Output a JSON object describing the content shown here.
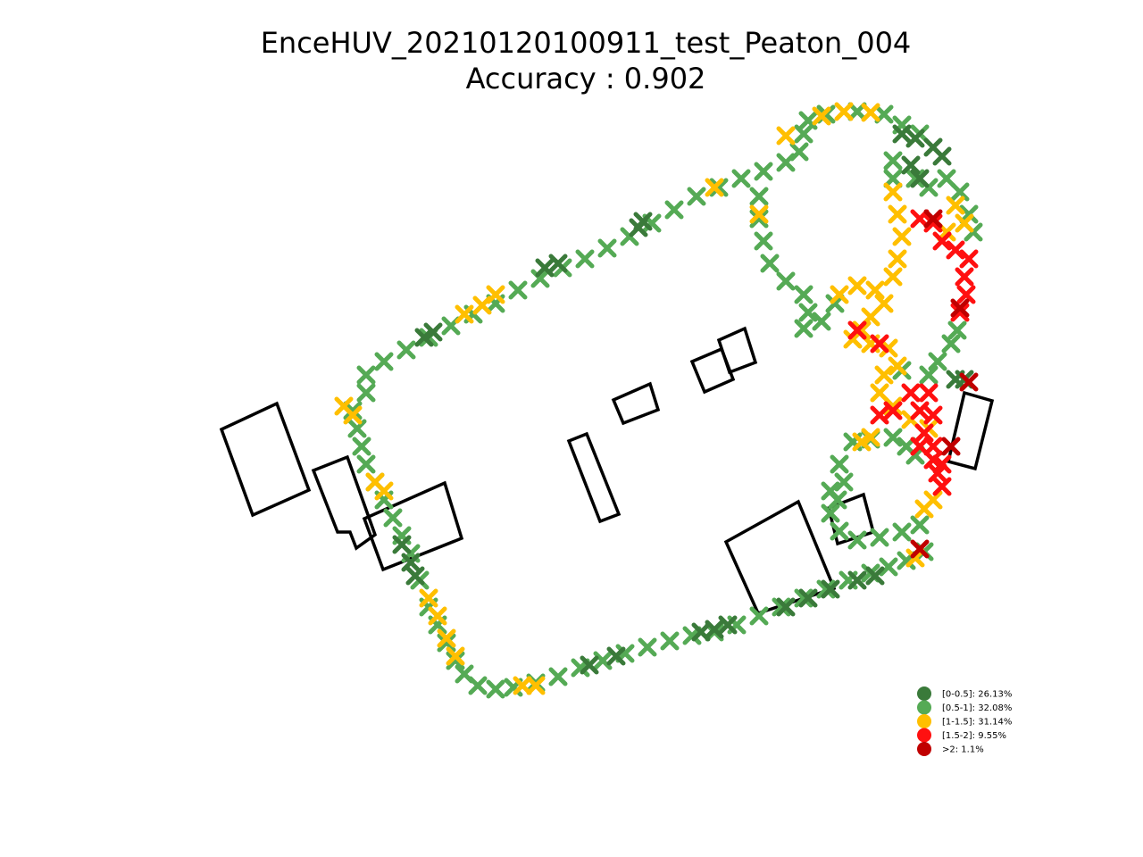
{
  "chart_data": {
    "type": "scatter",
    "title": "EnceHUV_20210120100911_test_Peaton_004",
    "subtitle": "Accuracy : 0.902",
    "grid": false,
    "axes_visible": false,
    "legend_placement": "lower-right",
    "colors": {
      "dark_green": "#3a7a3a",
      "green": "#55aa55",
      "yellow": "#ffbf00",
      "red": "#ff1010",
      "dark_red": "#c00000",
      "outline": "#000000"
    },
    "legend": [
      {
        "label": "[0-0.5]: 26.13%",
        "color": "#3a7a3a"
      },
      {
        "label": "[0.5-1]: 32.08%",
        "color": "#55aa55"
      },
      {
        "label": "[1-1.5]: 31.14%",
        "color": "#ffbf00"
      },
      {
        "label": "[1.5-2]: 9.55%",
        "color": "#ff1010"
      },
      {
        "label": ">2: 1.1%",
        "color": "#c00000"
      }
    ],
    "series": [
      {
        "category": "[0.5-1]",
        "color": "#55aa55",
        "points": [
          [
            410,
            440
          ],
          [
            395,
            460
          ],
          [
            400,
            480
          ],
          [
            405,
            500
          ],
          [
            410,
            520
          ],
          [
            420,
            540
          ],
          [
            430,
            560
          ],
          [
            440,
            580
          ],
          [
            450,
            600
          ],
          [
            460,
            620
          ],
          [
            470,
            650
          ],
          [
            480,
            680
          ],
          [
            490,
            700
          ],
          [
            500,
            720
          ],
          [
            510,
            740
          ],
          [
            520,
            755
          ],
          [
            535,
            768
          ],
          [
            555,
            772
          ],
          [
            575,
            770
          ],
          [
            600,
            765
          ],
          [
            625,
            758
          ],
          [
            650,
            748
          ],
          [
            675,
            740
          ],
          [
            700,
            732
          ],
          [
            725,
            725
          ],
          [
            750,
            718
          ],
          [
            775,
            712
          ],
          [
            800,
            708
          ],
          [
            825,
            700
          ],
          [
            850,
            690
          ],
          [
            875,
            680
          ],
          [
            900,
            670
          ],
          [
            925,
            660
          ],
          [
            950,
            650
          ],
          [
            975,
            642
          ],
          [
            995,
            635
          ],
          [
            1015,
            628
          ],
          [
            1035,
            618
          ],
          [
            410,
            420
          ],
          [
            430,
            405
          ],
          [
            455,
            392
          ],
          [
            480,
            378
          ],
          [
            505,
            365
          ],
          [
            530,
            352
          ],
          [
            555,
            340
          ],
          [
            580,
            325
          ],
          [
            605,
            312
          ],
          [
            630,
            300
          ],
          [
            655,
            290
          ],
          [
            680,
            278
          ],
          [
            705,
            265
          ],
          [
            730,
            250
          ],
          [
            755,
            235
          ],
          [
            780,
            220
          ],
          [
            805,
            210
          ],
          [
            830,
            200
          ],
          [
            855,
            192
          ],
          [
            880,
            182
          ],
          [
            895,
            170
          ],
          [
            900,
            150
          ],
          [
            905,
            135
          ],
          [
            925,
            128
          ],
          [
            960,
            125
          ],
          [
            990,
            128
          ],
          [
            1010,
            140
          ],
          [
            1030,
            150
          ],
          [
            1000,
            180
          ],
          [
            1000,
            200
          ],
          [
            1025,
            200
          ],
          [
            1040,
            210
          ],
          [
            1060,
            200
          ],
          [
            1075,
            215
          ],
          [
            1085,
            240
          ],
          [
            1090,
            260
          ],
          [
            850,
            220
          ],
          [
            850,
            245
          ],
          [
            855,
            270
          ],
          [
            862,
            295
          ],
          [
            880,
            315
          ],
          [
            900,
            330
          ],
          [
            905,
            350
          ],
          [
            900,
            368
          ],
          [
            920,
            360
          ],
          [
            935,
            340
          ],
          [
            1010,
            415
          ],
          [
            1040,
            420
          ],
          [
            1050,
            405
          ],
          [
            1065,
            385
          ],
          [
            1072,
            370
          ],
          [
            940,
            520
          ],
          [
            945,
            540
          ],
          [
            938,
            560
          ],
          [
            930,
            575
          ],
          [
            940,
            595
          ],
          [
            960,
            605
          ],
          [
            985,
            602
          ],
          [
            1010,
            596
          ],
          [
            1030,
            588
          ],
          [
            955,
            495
          ],
          [
            975,
            492
          ],
          [
            1000,
            490
          ],
          [
            1015,
            500
          ],
          [
            1025,
            510
          ],
          [
            930,
            550
          ]
        ]
      },
      {
        "category": "[0-0.5]",
        "color": "#3a7a3a",
        "points": [
          [
            450,
            610
          ],
          [
            460,
            630
          ],
          [
            465,
            645
          ],
          [
            785,
            708
          ],
          [
            800,
            705
          ],
          [
            815,
            700
          ],
          [
            880,
            680
          ],
          [
            905,
            670
          ],
          [
            930,
            660
          ],
          [
            960,
            650
          ],
          [
            980,
            645
          ],
          [
            610,
            300
          ],
          [
            625,
            295
          ],
          [
            715,
            255
          ],
          [
            720,
            248
          ],
          [
            475,
            378
          ],
          [
            485,
            372
          ],
          [
            1010,
            150
          ],
          [
            1025,
            155
          ],
          [
            1045,
            165
          ],
          [
            1055,
            175
          ],
          [
            1020,
            185
          ],
          [
            1030,
            200
          ],
          [
            1070,
            425
          ],
          [
            1080,
            425
          ],
          [
            660,
            745
          ],
          [
            690,
            735
          ]
        ]
      },
      {
        "category": "[1-1.5]",
        "color": "#ffbf00",
        "points": [
          [
            385,
            455
          ],
          [
            395,
            465
          ],
          [
            420,
            540
          ],
          [
            430,
            550
          ],
          [
            480,
            670
          ],
          [
            490,
            690
          ],
          [
            500,
            715
          ],
          [
            510,
            735
          ],
          [
            585,
            768
          ],
          [
            600,
            768
          ],
          [
            520,
            352
          ],
          [
            540,
            342
          ],
          [
            555,
            330
          ],
          [
            800,
            210
          ],
          [
            880,
            152
          ],
          [
            920,
            130
          ],
          [
            945,
            125
          ],
          [
            975,
            126
          ],
          [
            1000,
            215
          ],
          [
            1005,
            240
          ],
          [
            1010,
            265
          ],
          [
            1005,
            290
          ],
          [
            1000,
            310
          ],
          [
            1070,
            230
          ],
          [
            1080,
            250
          ],
          [
            1060,
            260
          ],
          [
            940,
            330
          ],
          [
            960,
            320
          ],
          [
            980,
            325
          ],
          [
            990,
            340
          ],
          [
            975,
            355
          ],
          [
            965,
            370
          ],
          [
            955,
            380
          ],
          [
            975,
            385
          ],
          [
            995,
            390
          ],
          [
            1005,
            410
          ],
          [
            990,
            420
          ],
          [
            985,
            440
          ],
          [
            1000,
            455
          ],
          [
            1020,
            470
          ],
          [
            1040,
            480
          ],
          [
            975,
            490
          ],
          [
            965,
            495
          ],
          [
            1035,
            570
          ],
          [
            1045,
            560
          ],
          [
            1025,
            625
          ],
          [
            850,
            240
          ]
        ]
      },
      {
        "category": "[1.5-2]",
        "color": "#ff1010",
        "points": [
          [
            1030,
            245
          ],
          [
            1045,
            250
          ],
          [
            1055,
            270
          ],
          [
            1070,
            280
          ],
          [
            1085,
            290
          ],
          [
            1080,
            310
          ],
          [
            1082,
            330
          ],
          [
            1075,
            350
          ],
          [
            1020,
            440
          ],
          [
            1040,
            440
          ],
          [
            1030,
            460
          ],
          [
            1045,
            465
          ],
          [
            985,
            465
          ],
          [
            1000,
            460
          ],
          [
            1035,
            485
          ],
          [
            1030,
            500
          ],
          [
            1045,
            515
          ],
          [
            1050,
            530
          ],
          [
            1055,
            545
          ],
          [
            1045,
            500
          ],
          [
            1055,
            520
          ],
          [
            960,
            370
          ],
          [
            985,
            385
          ]
        ]
      },
      {
        "category": ">2",
        "color": "#c00000",
        "points": [
          [
            1065,
            500
          ],
          [
            1085,
            428
          ],
          [
            1030,
            615
          ],
          [
            1045,
            245
          ],
          [
            1075,
            345
          ]
        ]
      }
    ],
    "outlines": [
      [
        [
          248,
          481
        ],
        [
          310,
          452
        ],
        [
          346,
          549
        ],
        [
          283,
          577
        ]
      ],
      [
        [
          351,
          527
        ],
        [
          389,
          512
        ],
        [
          420,
          599
        ],
        [
          399,
          614
        ],
        [
          392,
          596
        ],
        [
          378,
          596
        ]
      ],
      [
        [
          408,
          581
        ],
        [
          498,
          541
        ],
        [
          517,
          603
        ],
        [
          429,
          638
        ]
      ],
      [
        [
          637,
          494
        ],
        [
          657,
          486
        ],
        [
          693,
          576
        ],
        [
          672,
          584
        ]
      ],
      [
        [
          687,
          448
        ],
        [
          728,
          430
        ],
        [
          737,
          459
        ],
        [
          698,
          474
        ]
      ],
      [
        [
          775,
          405
        ],
        [
          808,
          391
        ],
        [
          821,
          425
        ],
        [
          789,
          439
        ]
      ],
      [
        [
          805,
          381
        ],
        [
          834,
          368
        ],
        [
          846,
          406
        ],
        [
          817,
          417
        ]
      ],
      [
        [
          813,
          607
        ],
        [
          894,
          562
        ],
        [
          934,
          659
        ],
        [
          849,
          687
        ]
      ],
      [
        [
          928,
          569
        ],
        [
          967,
          554
        ],
        [
          978,
          596
        ],
        [
          938,
          609
        ]
      ],
      [
        [
          1080,
          440
        ],
        [
          1111,
          449
        ],
        [
          1092,
          525
        ],
        [
          1062,
          517
        ]
      ]
    ]
  }
}
